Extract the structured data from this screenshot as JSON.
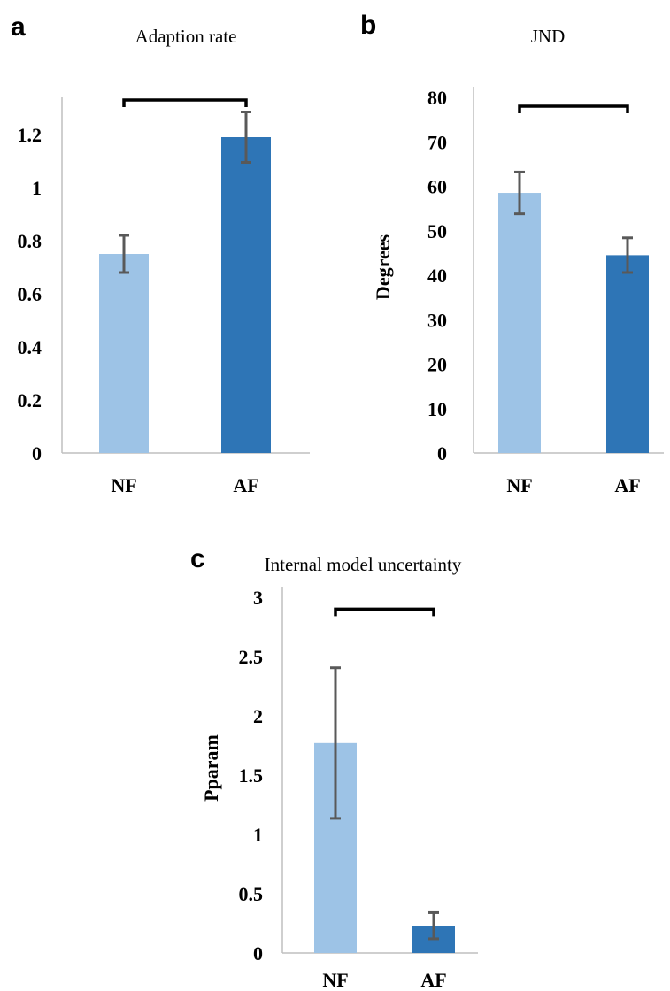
{
  "chart_data": [
    {
      "id": "a",
      "type": "bar",
      "panel_label": "a",
      "title": "Adaption rate",
      "ylabel": "",
      "categories": [
        "NF",
        "AF"
      ],
      "values": [
        0.75,
        1.19
      ],
      "errors": [
        0.07,
        0.095
      ],
      "colors": [
        "#9dc3e6",
        "#2e75b6"
      ],
      "ylim": [
        0,
        1.3
      ],
      "yticks": [
        0,
        0.2,
        0.4,
        0.6,
        0.8,
        1,
        1.2
      ],
      "ytick_labels": [
        "0",
        "0.2",
        "0.4",
        "0.6",
        "0.8",
        "1",
        "1.2"
      ],
      "significance_bracket": true,
      "bracket_y": 1.33,
      "grid": false
    },
    {
      "id": "b",
      "type": "bar",
      "panel_label": "b",
      "title": "JND",
      "ylabel": "Degrees",
      "categories": [
        "NF",
        "AF"
      ],
      "values": [
        58.5,
        44.5
      ],
      "errors": [
        4.7,
        3.9
      ],
      "colors": [
        "#9dc3e6",
        "#2e75b6"
      ],
      "ylim": [
        0,
        80
      ],
      "yticks": [
        0,
        10,
        20,
        30,
        40,
        50,
        60,
        70,
        80
      ],
      "ytick_labels": [
        "0",
        "10",
        "20",
        "30",
        "40",
        "50",
        "60",
        "70",
        "80"
      ],
      "significance_bracket": true,
      "bracket_y": 78,
      "grid": false
    },
    {
      "id": "c",
      "type": "bar",
      "panel_label": "c",
      "title": "Internal model uncertainty",
      "ylabel": "Pparam",
      "categories": [
        "NF",
        "AF"
      ],
      "values": [
        1.77,
        0.23
      ],
      "errors": [
        0.635,
        0.11
      ],
      "colors": [
        "#9dc3e6",
        "#2e75b6"
      ],
      "ylim": [
        0,
        3
      ],
      "yticks": [
        0,
        0.5,
        1,
        1.5,
        2,
        2.5,
        3
      ],
      "ytick_labels": [
        "0",
        "0.5",
        "1",
        "1.5",
        "2",
        "2.5",
        "3"
      ],
      "significance_bracket": true,
      "bracket_y": 2.9,
      "grid": false
    }
  ]
}
